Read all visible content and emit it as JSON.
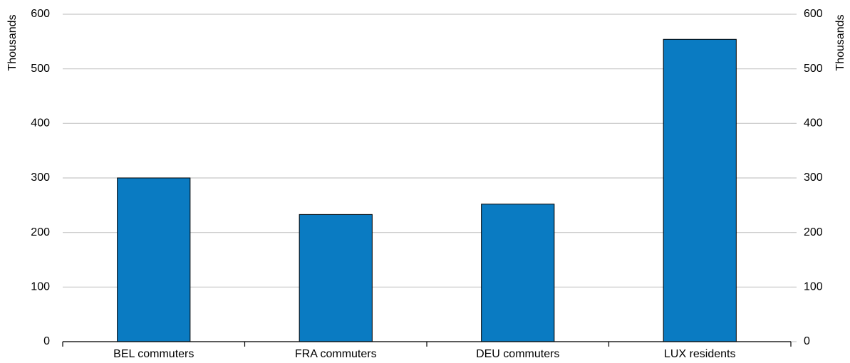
{
  "chart_data": {
    "type": "bar",
    "y_label": "Thousands",
    "y2_label": "Thousands",
    "categories": [
      "BEL commuters",
      "FRA commuters",
      "DEU commuters",
      "LUX residents"
    ],
    "values": [
      300,
      233,
      252,
      554
    ],
    "color": "#0a7bc2",
    "ylim": [
      0,
      600
    ],
    "yticks": [
      0,
      100,
      200,
      300,
      400,
      500,
      600
    ],
    "y2lim": [
      0,
      600
    ],
    "y2ticks": [
      0,
      100,
      200,
      300,
      400,
      500,
      600
    ],
    "grid": true
  }
}
